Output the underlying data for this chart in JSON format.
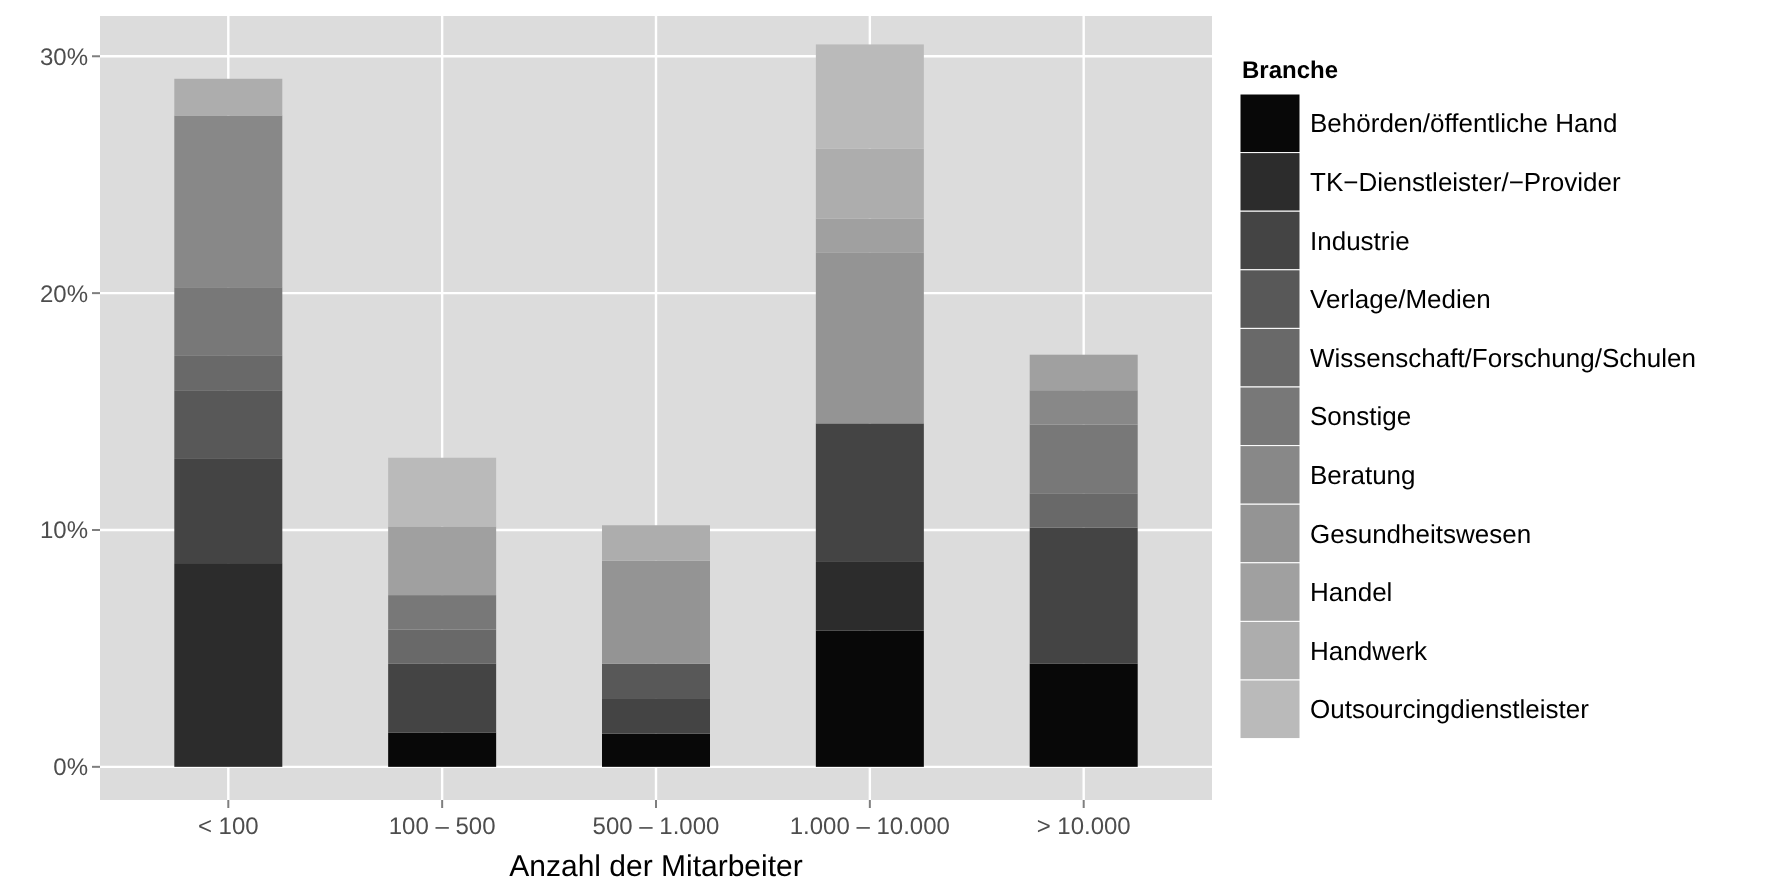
{
  "chart_data": {
    "type": "bar",
    "stacked": true,
    "xlabel": "Anzahl der Mitarbeiter",
    "legend_title": "Branche",
    "legend": "right",
    "grid": true,
    "categories": [
      "< 100",
      "100 – 500",
      "500 – 1.000",
      "1.000 – 10.000",
      "> 10.000"
    ],
    "ylim": [
      -1.4,
      31.7
    ],
    "yticks": [
      {
        "value": 0,
        "label": "0%"
      },
      {
        "value": 10,
        "label": "10%"
      },
      {
        "value": 20,
        "label": "20%"
      },
      {
        "value": 30,
        "label": "30%"
      }
    ],
    "series": [
      {
        "name": "Behörden/öffentliche Hand",
        "color": "#080808",
        "values": [
          null,
          1.45,
          1.4,
          5.75,
          4.35
        ]
      },
      {
        "name": "TK−Dienstleister/−Provider",
        "color": "#2c2c2c",
        "values": [
          8.6,
          null,
          null,
          2.9,
          null
        ]
      },
      {
        "name": "Industrie",
        "color": "#444444",
        "values": [
          4.4,
          2.9,
          1.5,
          5.85,
          5.75
        ]
      },
      {
        "name": "Verlage/Medien",
        "color": "#585858",
        "values": [
          2.9,
          null,
          1.45,
          null,
          null
        ]
      },
      {
        "name": "Wissenschaft/Forschung/Schulen",
        "color": "#696969",
        "values": [
          1.45,
          1.45,
          null,
          null,
          1.45
        ]
      },
      {
        "name": "Sonstige",
        "color": "#787878",
        "values": [
          2.9,
          1.45,
          null,
          null,
          2.9
        ]
      },
      {
        "name": "Beratung",
        "color": "#888888",
        "values": [
          7.25,
          null,
          null,
          null,
          1.45
        ]
      },
      {
        "name": "Gesundheitswesen",
        "color": "#949494",
        "values": [
          null,
          null,
          4.35,
          7.2,
          null
        ]
      },
      {
        "name": "Handel",
        "color": "#a0a0a0",
        "values": [
          null,
          2.9,
          null,
          1.45,
          1.5
        ]
      },
      {
        "name": "Handwerk",
        "color": "#adadad",
        "values": [
          1.55,
          null,
          1.5,
          2.95,
          null
        ]
      },
      {
        "name": "Outsourcingdienstleister",
        "color": "#bababa",
        "values": [
          null,
          2.9,
          null,
          4.4,
          null
        ]
      }
    ]
  }
}
